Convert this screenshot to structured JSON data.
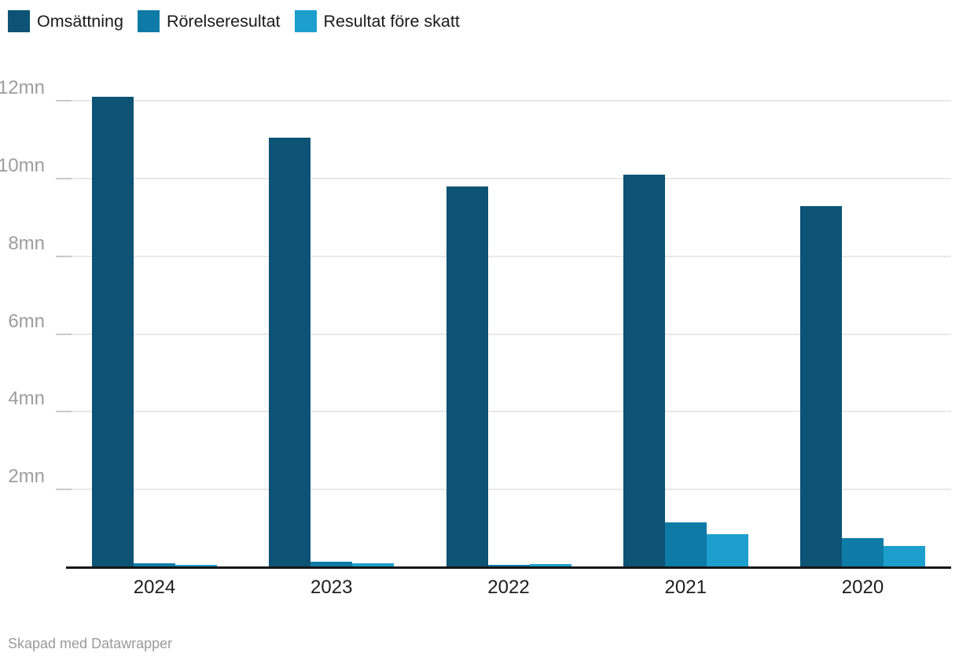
{
  "legend": {
    "items": [
      {
        "label": "Omsättning",
        "color": "#0c5376"
      },
      {
        "label": "Rörelseresultat",
        "color": "#0e7ba6"
      },
      {
        "label": "Resultat före skatt",
        "color": "#1c9fcd"
      }
    ]
  },
  "chart_data": {
    "type": "bar",
    "title": "",
    "xlabel": "",
    "ylabel": "",
    "unit": "mn",
    "categories": [
      "2024",
      "2023",
      "2022",
      "2021",
      "2020"
    ],
    "series": [
      {
        "name": "Omsättning",
        "color": "#0c5376",
        "values": [
          12.1,
          11.05,
          9.8,
          10.1,
          9.3
        ]
      },
      {
        "name": "Rörelseresultat",
        "color": "#0e7ba6",
        "values": [
          0.1,
          0.15,
          0.07,
          1.15,
          0.75
        ]
      },
      {
        "name": "Resultat före skatt",
        "color": "#1c9fcd",
        "values": [
          0.06,
          0.11,
          0.09,
          0.85,
          0.55
        ]
      }
    ],
    "y_ticks": [
      {
        "value": 2,
        "label": "2mn"
      },
      {
        "value": 4,
        "label": "4mn"
      },
      {
        "value": 6,
        "label": "6mn"
      },
      {
        "value": 8,
        "label": "8mn"
      },
      {
        "value": 10,
        "label": "10mn"
      },
      {
        "value": 12,
        "label": "12mn"
      }
    ],
    "ylim": [
      0,
      12.37
    ],
    "grid": "horizontal",
    "legend_position": "top-left"
  },
  "footer": {
    "credit": "Skapad med Datawrapper"
  }
}
